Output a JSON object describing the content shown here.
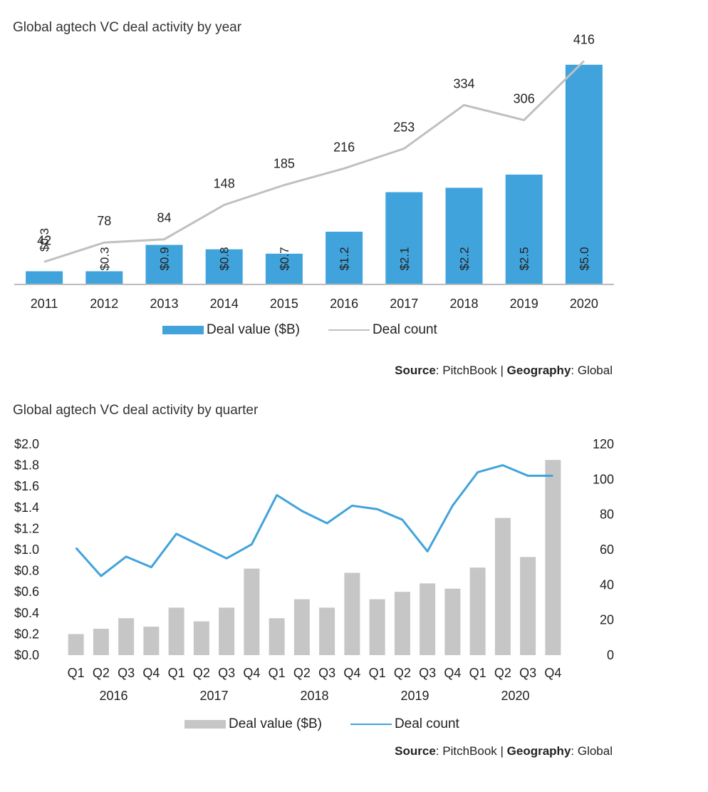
{
  "chart_data": [
    {
      "type": "bar",
      "title": "Global agtech VC deal activity by year",
      "categories": [
        "2011",
        "2012",
        "2013",
        "2014",
        "2015",
        "2016",
        "2017",
        "2018",
        "2019",
        "2020"
      ],
      "series": [
        {
          "name": "Deal value ($B)",
          "type": "bar",
          "values": [
            0.3,
            0.3,
            0.9,
            0.8,
            0.7,
            1.2,
            2.1,
            2.2,
            2.5,
            5.0
          ],
          "labels": [
            "$0.3",
            "$0.3",
            "$0.9",
            "$0.8",
            "$0.7",
            "$1.2",
            "$2.1",
            "$2.2",
            "$2.5",
            "$5.0"
          ],
          "color": "#41a3dc"
        },
        {
          "name": "Deal count",
          "type": "line",
          "values": [
            42,
            78,
            84,
            148,
            185,
            216,
            253,
            334,
            306,
            416
          ],
          "color": "#c0c0c0"
        }
      ],
      "ylim_value": [
        0,
        5.5
      ],
      "ylim_count": [
        0,
        450
      ],
      "grid": false,
      "legend_placement": "bottom",
      "source_label": "Source",
      "source_value": ": PitchBook | ",
      "geo_label": "Geography",
      "geo_value": ": Global"
    },
    {
      "type": "bar",
      "title": "Global agtech VC deal activity by quarter",
      "categories": [
        "Q1",
        "Q2",
        "Q3",
        "Q4",
        "Q1",
        "Q2",
        "Q3",
        "Q4",
        "Q1",
        "Q2",
        "Q3",
        "Q4",
        "Q1",
        "Q2",
        "Q3",
        "Q4",
        "Q1",
        "Q2",
        "Q3",
        "Q4"
      ],
      "year_groups": [
        "2016",
        "2017",
        "2018",
        "2019",
        "2020"
      ],
      "series": [
        {
          "name": "Deal value ($B)",
          "type": "bar",
          "values": [
            0.2,
            0.25,
            0.35,
            0.27,
            0.45,
            0.32,
            0.45,
            0.82,
            0.35,
            0.53,
            0.45,
            0.78,
            0.53,
            0.6,
            0.68,
            0.63,
            0.83,
            1.3,
            0.93,
            1.85
          ],
          "color": "#c6c6c6"
        },
        {
          "name": "Deal count",
          "type": "line",
          "values": [
            61,
            45,
            56,
            50,
            69,
            62,
            55,
            63,
            91,
            82,
            75,
            85,
            83,
            77,
            59,
            85,
            104,
            108,
            102,
            102
          ],
          "color": "#41a3dc"
        }
      ],
      "y_left_ticks": [
        "$0.0",
        "$0.2",
        "$0.4",
        "$0.6",
        "$0.8",
        "$1.0",
        "$1.2",
        "$1.4",
        "$1.6",
        "$1.8",
        "$2.0"
      ],
      "y_right_ticks": [
        "0",
        "20",
        "40",
        "60",
        "80",
        "100",
        "120"
      ],
      "ylim_value": [
        0,
        2.0
      ],
      "ylim_count": [
        0,
        120
      ],
      "grid": false,
      "legend_placement": "bottom",
      "source_label": "Source",
      "source_value": ": PitchBook | ",
      "geo_label": "Geography",
      "geo_value": ": Global"
    }
  ]
}
